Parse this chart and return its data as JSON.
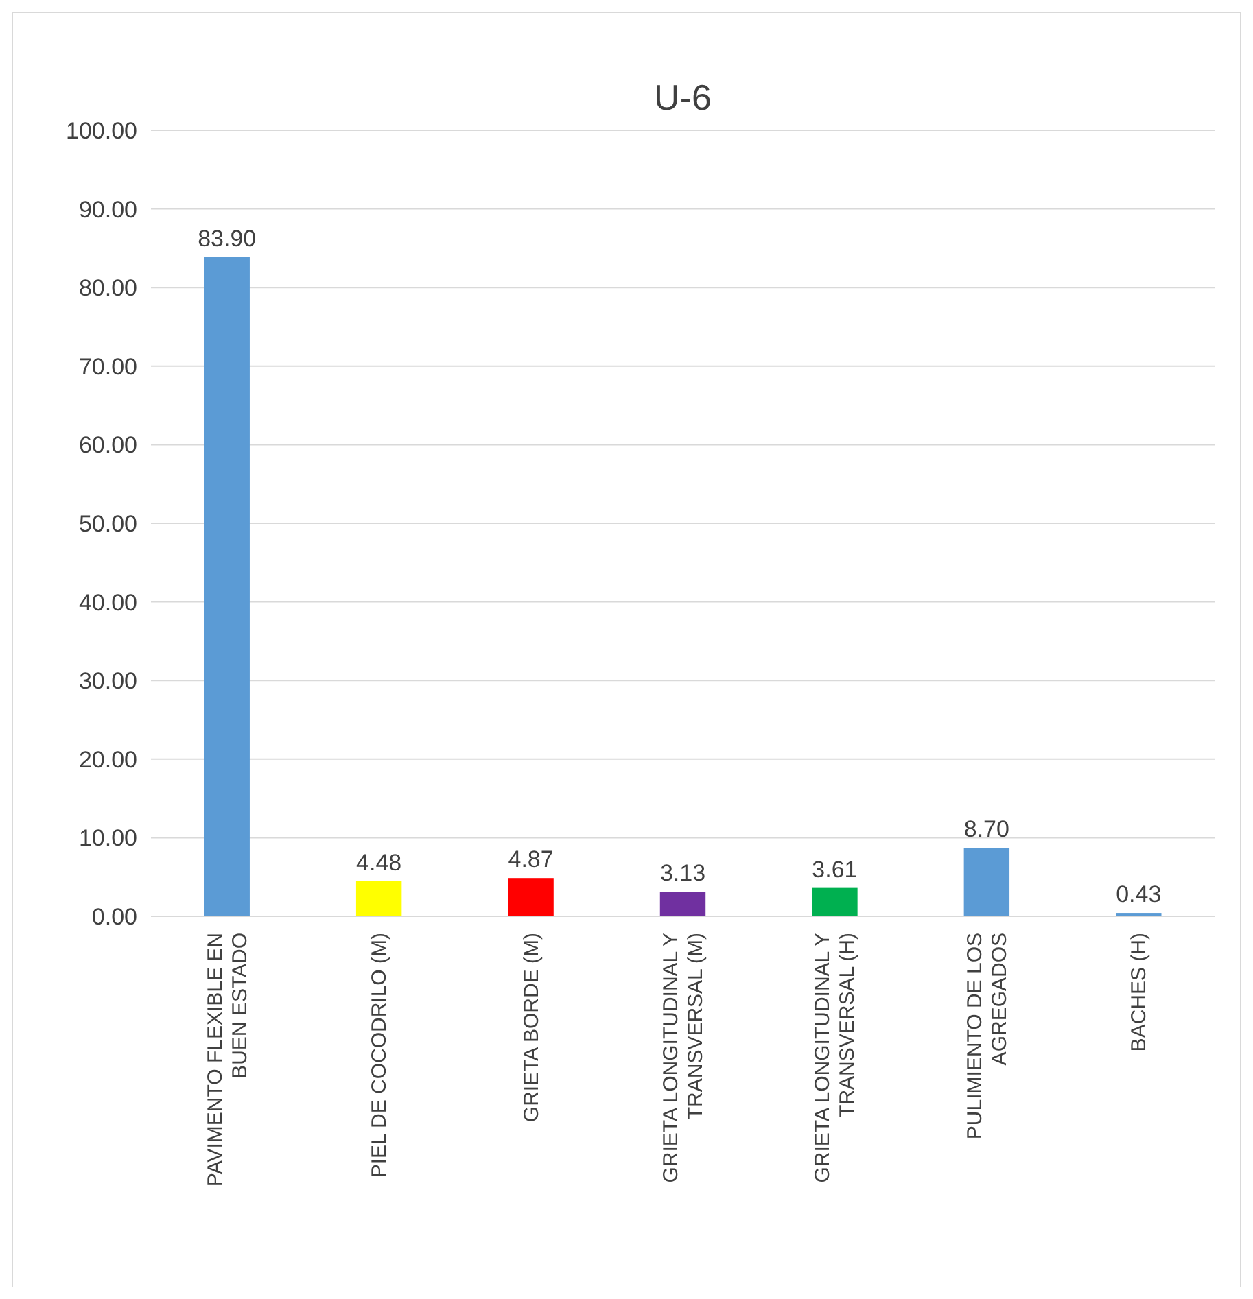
{
  "chart_data": {
    "type": "bar",
    "title": "U-6",
    "categories": [
      "PAVIMENTO FLEXIBLE EN BUEN ESTADO",
      "PIEL DE COCODRILO (M)",
      "GRIETA BORDE (M)",
      "GRIETA LONGITUDINAL Y TRANSVERSAL (M)",
      "GRIETA LONGITUDINAL Y TRANSVERSAL (H)",
      "PULIMIENTO DE LOS AGREGADOS",
      "BACHES (H)"
    ],
    "values": [
      83.9,
      4.48,
      4.87,
      3.13,
      3.61,
      8.7,
      0.43
    ],
    "value_labels": [
      "83.90",
      "4.48",
      "4.87",
      "3.13",
      "3.61",
      "8.70",
      "0.43"
    ],
    "colors": [
      "#5b9bd5",
      "#ffff00",
      "#ff0000",
      "#7030a0",
      "#00b050",
      "#5b9bd5",
      "#5b9bd5"
    ],
    "ylim": [
      0,
      100
    ],
    "yticks": [
      {
        "value": 0,
        "label": "0.00"
      },
      {
        "value": 10,
        "label": "10.00"
      },
      {
        "value": 20,
        "label": "20.00"
      },
      {
        "value": 30,
        "label": "30.00"
      },
      {
        "value": 40,
        "label": "40.00"
      },
      {
        "value": 50,
        "label": "50.00"
      },
      {
        "value": 60,
        "label": "60.00"
      },
      {
        "value": 70,
        "label": "70.00"
      },
      {
        "value": 80,
        "label": "80.00"
      },
      {
        "value": 90,
        "label": "90.00"
      },
      {
        "value": 100,
        "label": "100.00"
      }
    ],
    "grid": "y"
  }
}
